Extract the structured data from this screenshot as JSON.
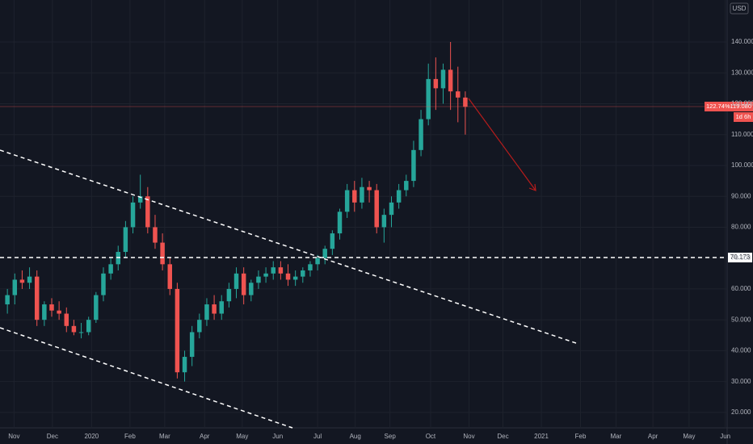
{
  "chart_data": {
    "type": "candlestick",
    "currency": "USD",
    "x": [
      -1,
      0,
      1,
      2,
      3,
      4,
      5,
      6,
      7,
      8,
      9,
      10,
      11,
      12,
      13,
      14,
      15,
      16,
      17,
      18,
      19,
      20,
      21,
      22,
      23,
      24,
      25,
      26,
      27,
      28,
      29,
      30,
      31,
      32,
      33,
      34,
      35,
      36,
      37,
      38,
      39,
      40,
      41,
      42,
      43,
      44,
      45,
      46,
      47,
      48,
      49,
      50,
      51,
      52,
      53,
      54,
      55,
      56,
      57,
      58,
      59,
      60,
      61
    ],
    "open": [
      55,
      58,
      63,
      62,
      64,
      50,
      55,
      53,
      52,
      48,
      46,
      46,
      50,
      58,
      65,
      68,
      72,
      80,
      88,
      90,
      80,
      75,
      68,
      60,
      33,
      38,
      46,
      50,
      55,
      52,
      56,
      60,
      65,
      58,
      62,
      64,
      65,
      67,
      65,
      63,
      64,
      66,
      68,
      70,
      73,
      78,
      85,
      92,
      88,
      93,
      92,
      80,
      84,
      88,
      92,
      95,
      105,
      115,
      128,
      125,
      131,
      124,
      122
    ],
    "high": [
      60,
      65,
      66,
      67,
      66,
      56,
      57,
      56,
      54,
      50,
      49,
      51,
      59,
      67,
      70,
      74,
      82,
      90,
      97,
      93,
      84,
      78,
      70,
      62,
      40,
      48,
      52,
      57,
      58,
      58,
      62,
      67,
      67,
      63,
      66,
      67,
      69,
      69,
      68,
      66,
      67,
      69,
      71,
      74,
      79,
      86,
      94,
      95,
      96,
      95,
      94,
      86,
      90,
      94,
      97,
      108,
      118,
      133,
      135,
      133,
      140,
      132,
      124
    ],
    "low": [
      52,
      55,
      60,
      60,
      48,
      48,
      51,
      50,
      46,
      45,
      44,
      45,
      49,
      56,
      63,
      66,
      70,
      78,
      86,
      78,
      73,
      66,
      58,
      31,
      30,
      35,
      44,
      48,
      50,
      50,
      54,
      57,
      55,
      56,
      60,
      62,
      63,
      63,
      61,
      61,
      62,
      64,
      66,
      68,
      71,
      76,
      83,
      85,
      86,
      88,
      78,
      75,
      80,
      86,
      90,
      93,
      103,
      113,
      118,
      120,
      118,
      114,
      110
    ],
    "close": [
      58,
      63,
      62,
      64,
      50,
      55,
      53,
      52,
      48,
      46,
      46,
      50,
      58,
      65,
      68,
      72,
      80,
      88,
      90,
      80,
      75,
      68,
      60,
      33,
      38,
      46,
      50,
      55,
      52,
      56,
      60,
      65,
      58,
      62,
      64,
      65,
      67,
      65,
      63,
      64,
      66,
      68,
      70,
      73,
      78,
      85,
      92,
      88,
      93,
      92,
      80,
      84,
      88,
      92,
      95,
      105,
      115,
      128,
      125,
      131,
      124,
      122,
      119
    ],
    "up_color": "#26a69a",
    "down_color": "#ef5350",
    "xlim": [
      -2,
      97
    ],
    "ylim": [
      15.0,
      153.6
    ],
    "grid": true,
    "yticks": [
      {
        "value": 20,
        "label": "20.000"
      },
      {
        "value": 30,
        "label": "30.000"
      },
      {
        "value": 40,
        "label": "40.000"
      },
      {
        "value": 50,
        "label": "50.000"
      },
      {
        "value": 60,
        "label": "60.000"
      },
      {
        "value": 70,
        "label": "70.000"
      },
      {
        "value": 80,
        "label": "80.000"
      },
      {
        "value": 90,
        "label": "90.000"
      },
      {
        "value": 100,
        "label": "100.000"
      },
      {
        "value": 110,
        "label": "110.000"
      },
      {
        "value": 120,
        "label": "120.000"
      },
      {
        "value": 130,
        "label": "130.000"
      },
      {
        "value": 140,
        "label": "140.000"
      }
    ],
    "xticks": [
      {
        "value": -0.1,
        "label": "Nov"
      },
      {
        "value": 5.1,
        "label": "Dec"
      },
      {
        "value": 10.4,
        "label": "2020"
      },
      {
        "value": 15.6,
        "label": "Feb"
      },
      {
        "value": 20.3,
        "label": "Mar"
      },
      {
        "value": 25.7,
        "label": "Apr"
      },
      {
        "value": 30.8,
        "label": "May"
      },
      {
        "value": 35.6,
        "label": "Jun"
      },
      {
        "value": 41.0,
        "label": "Jul"
      },
      {
        "value": 46.1,
        "label": "Aug"
      },
      {
        "value": 50.8,
        "label": "Sep"
      },
      {
        "value": 56.3,
        "label": "Oct"
      },
      {
        "value": 61.5,
        "label": "Nov"
      },
      {
        "value": 66.1,
        "label": "Dec"
      },
      {
        "value": 71.3,
        "label": "2021"
      },
      {
        "value": 76.6,
        "label": "Feb"
      },
      {
        "value": 81.4,
        "label": "Mar"
      },
      {
        "value": 86.4,
        "label": "Apr"
      },
      {
        "value": 91.3,
        "label": "May"
      },
      {
        "value": 96.2,
        "label": "Jun"
      }
    ],
    "horizontal_line": {
      "value": 70.173,
      "label": "70.173"
    },
    "last_price": {
      "value": 119.08,
      "label": "119.080"
    },
    "last_change": {
      "value": 122.74,
      "label": "122.74%"
    },
    "countdown": "1d 6h"
  }
}
